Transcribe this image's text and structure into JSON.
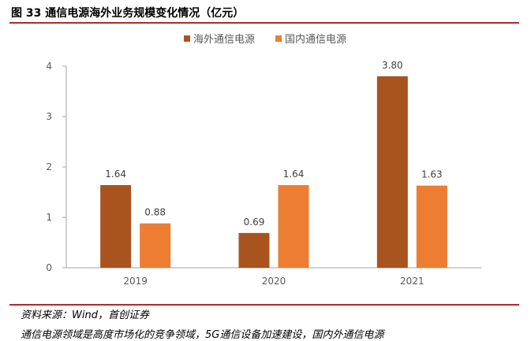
{
  "figure": {
    "title": "图 33 通信电源海外业务规模变化情况（亿元）",
    "source": "资料来源：Wind，首创证券",
    "body_text": "通信电源领域是高度市场化的竞争领域，5G通信设备加速建设，国内外通信电源"
  },
  "chart_data": {
    "type": "bar",
    "title": "",
    "xlabel": "",
    "ylabel": "",
    "categories": [
      "2019",
      "2020",
      "2021"
    ],
    "series": [
      {
        "name": "海外通信电源",
        "values": [
          1.64,
          0.69,
          3.8
        ],
        "labels": [
          "1.64",
          "0.69",
          "3.80"
        ],
        "color": "#a9541e"
      },
      {
        "name": "国内通信电源",
        "values": [
          0.88,
          1.64,
          1.63
        ],
        "labels": [
          "0.88",
          "1.64",
          "1.63"
        ],
        "color": "#ed7d31"
      }
    ],
    "ylim": [
      0,
      4
    ],
    "yticks": [
      "0",
      "1",
      "2",
      "3",
      "4"
    ],
    "grid": false,
    "legend": "top-center"
  }
}
